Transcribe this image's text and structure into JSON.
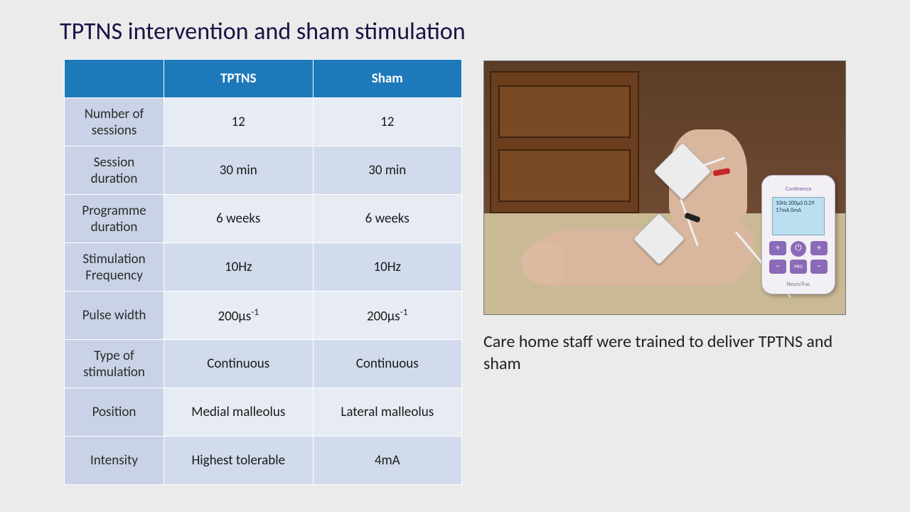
{
  "title": "TPTNS intervention and sham stimulation",
  "table": {
    "header_bg": "#1e79ba",
    "label_bg": "#c9d2e6",
    "row_odd_bg": "#e6ebf4",
    "row_even_bg": "#d2dbec",
    "columns": [
      "",
      "TPTNS",
      "Sham"
    ],
    "rows": [
      {
        "label": "Number of sessions",
        "tptns": "12",
        "sham": "12"
      },
      {
        "label": "Session duration",
        "tptns": "30 min",
        "sham": "30 min"
      },
      {
        "label": "Programme duration",
        "tptns": "6 weeks",
        "sham": "6 weeks"
      },
      {
        "label": "Stimulation Frequency",
        "tptns": "10Hz",
        "sham": "10Hz"
      },
      {
        "label": "Pulse width",
        "tptns": "200µs",
        "sham": "200µs",
        "superscript": "-1"
      },
      {
        "label": "Type of stimulation",
        "tptns": "Continuous",
        "sham": "Continuous"
      },
      {
        "label": "Position",
        "tptns": "Medial malleolus",
        "sham": "Lateral malleolus"
      },
      {
        "label": "Intensity",
        "tptns": "Highest tolerable",
        "sham": "4mA"
      }
    ]
  },
  "image": {
    "alt": "Foot with two electrode pads on ankle connected by wires to a NeuroTrac Continence TENS device",
    "device_label": "Continence",
    "device_brand": "NeuroTrac",
    "screen_readout": "10Hz  200µS\n0:29\n17mA  0mA"
  },
  "caption": "Care home staff were trained to deliver TPTNS and sham",
  "colors": {
    "background": "#ebebeb",
    "title_color": "#1a1245",
    "text_color": "#202020"
  },
  "fonts": {
    "title_size_pt": 26,
    "body_size_pt": 14,
    "caption_size_pt": 18
  }
}
